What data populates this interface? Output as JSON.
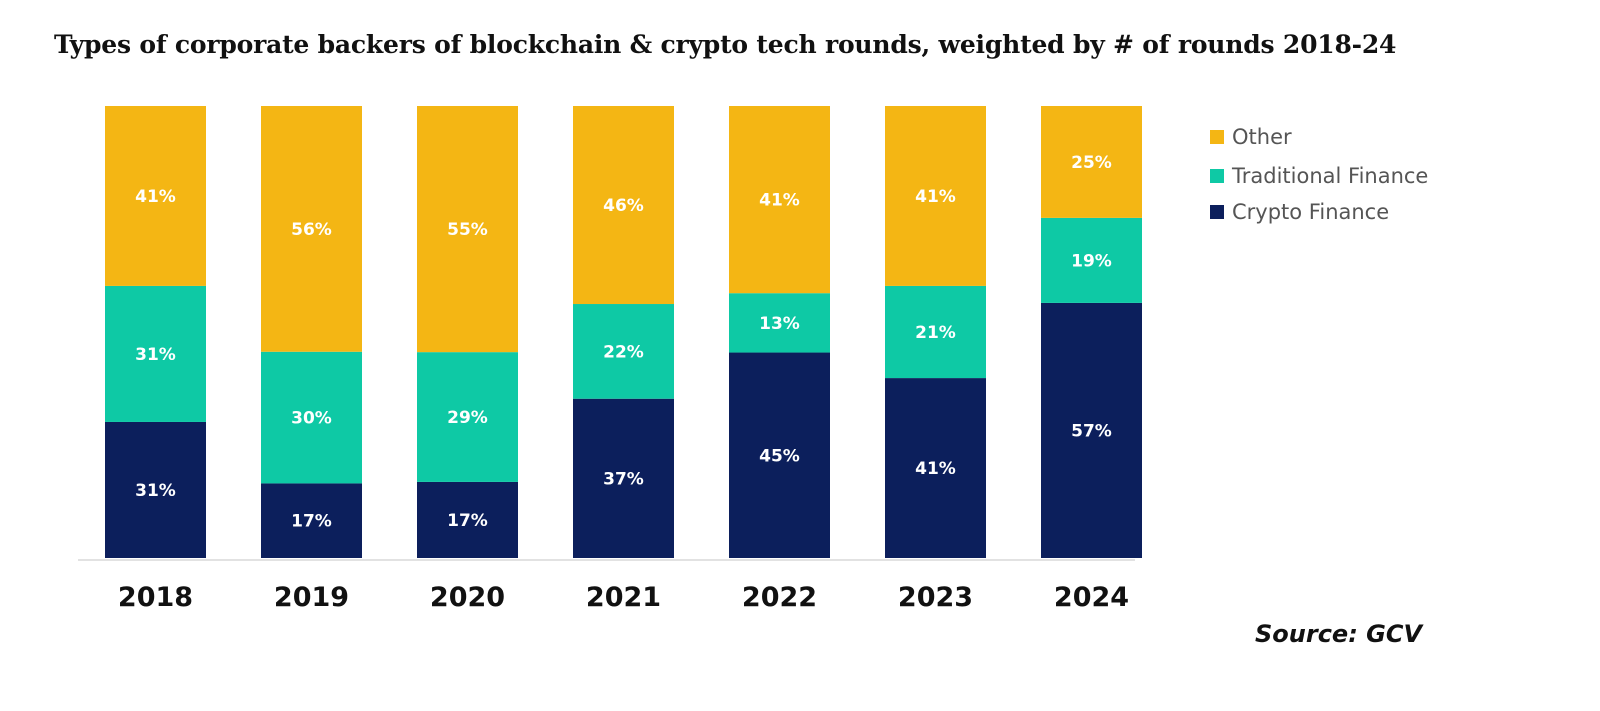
{
  "chart_data": {
    "type": "bar",
    "stacked": true,
    "title": "Types of corporate backers of blockchain & crypto tech rounds, weighted by # of rounds 2018-24",
    "categories": [
      "2018",
      "2019",
      "2020",
      "2021",
      "2022",
      "2023",
      "2024"
    ],
    "series": [
      {
        "name": "Crypto Finance",
        "color": "#0c1f5c",
        "values": [
          31,
          17,
          17,
          37,
          45,
          41,
          57
        ]
      },
      {
        "name": "Traditional Finance",
        "color": "#0ec9a5",
        "values": [
          31,
          30,
          29,
          22,
          13,
          21,
          19
        ]
      },
      {
        "name": "Other",
        "color": "#f4b614",
        "values": [
          41,
          56,
          55,
          46,
          41,
          41,
          25
        ]
      }
    ],
    "value_suffix": "%",
    "xlabel": "",
    "ylabel": "",
    "legend_position": "right",
    "legend_order": [
      "Other",
      "Traditional Finance",
      "Crypto Finance"
    ],
    "grid": false,
    "source": "Source: GCV"
  }
}
